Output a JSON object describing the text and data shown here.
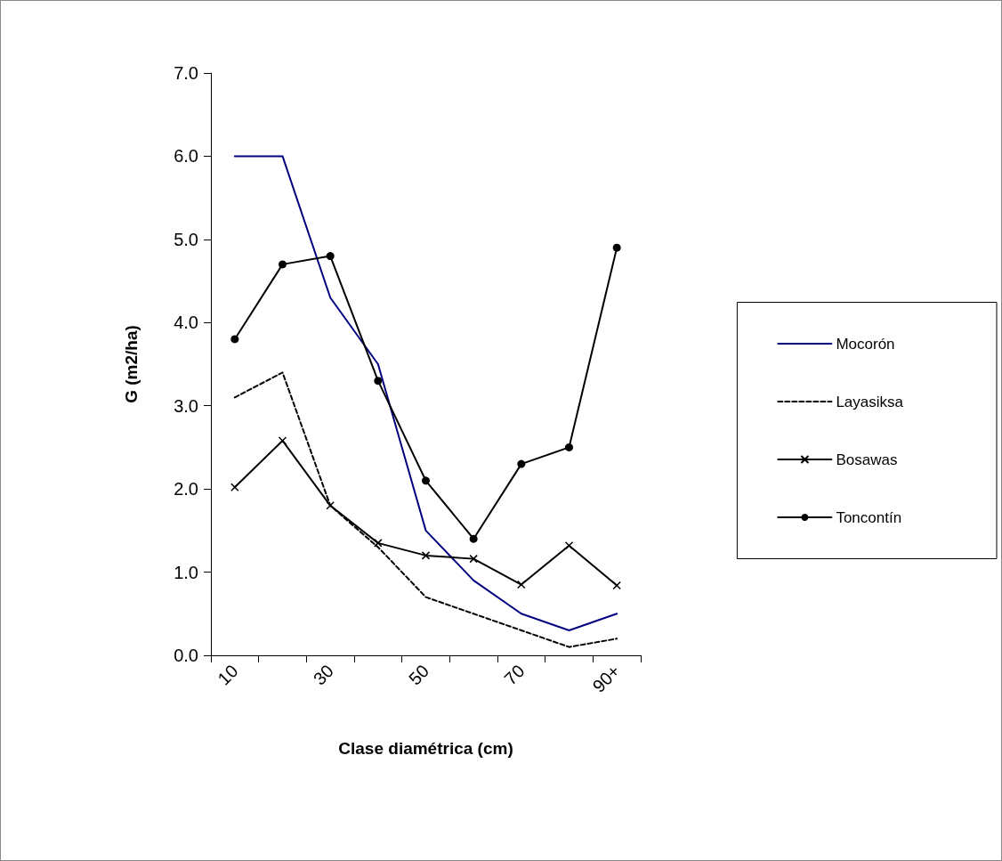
{
  "chart_data": {
    "type": "line",
    "xlabel": "Clase diamétrica (cm)",
    "ylabel": "G (m2/ha)",
    "categories": [
      "10",
      null,
      "30",
      null,
      "50",
      null,
      "70",
      null,
      "90+"
    ],
    "series": [
      {
        "name": "Mocorón",
        "color": "#000080",
        "marker": "none",
        "line_style": "solid",
        "values": [
          6.0,
          6.0,
          4.3,
          3.5,
          1.5,
          0.9,
          0.5,
          0.3,
          0.5
        ]
      },
      {
        "name": "Layasiksa",
        "color": "#000000",
        "marker": "none",
        "line_style": "dashed",
        "values": [
          3.1,
          3.4,
          1.8,
          1.3,
          0.7,
          0.5,
          0.3,
          0.1,
          0.2
        ]
      },
      {
        "name": "Bosawas",
        "color": "#000000",
        "marker": "cross",
        "line_style": "solid",
        "values": [
          2.02,
          2.58,
          1.8,
          1.35,
          1.2,
          1.16,
          0.85,
          1.32,
          0.84
        ]
      },
      {
        "name": "Toncontín",
        "color": "#000000",
        "marker": "circle",
        "line_style": "solid",
        "values": [
          3.8,
          4.7,
          4.8,
          3.3,
          2.1,
          1.4,
          2.3,
          2.5,
          4.9
        ]
      }
    ],
    "ylim": [
      0,
      7
    ],
    "yticks": [
      {
        "value": 0,
        "label": "0.0"
      },
      {
        "value": 1,
        "label": "1.0"
      },
      {
        "value": 2,
        "label": "2.0"
      },
      {
        "value": 3,
        "label": "3.0"
      },
      {
        "value": 4,
        "label": "4.0"
      },
      {
        "value": 5,
        "label": "5.0"
      },
      {
        "value": 6,
        "label": "6.0"
      },
      {
        "value": 7,
        "label": "7.0"
      }
    ],
    "grid": false,
    "legend": "right"
  }
}
